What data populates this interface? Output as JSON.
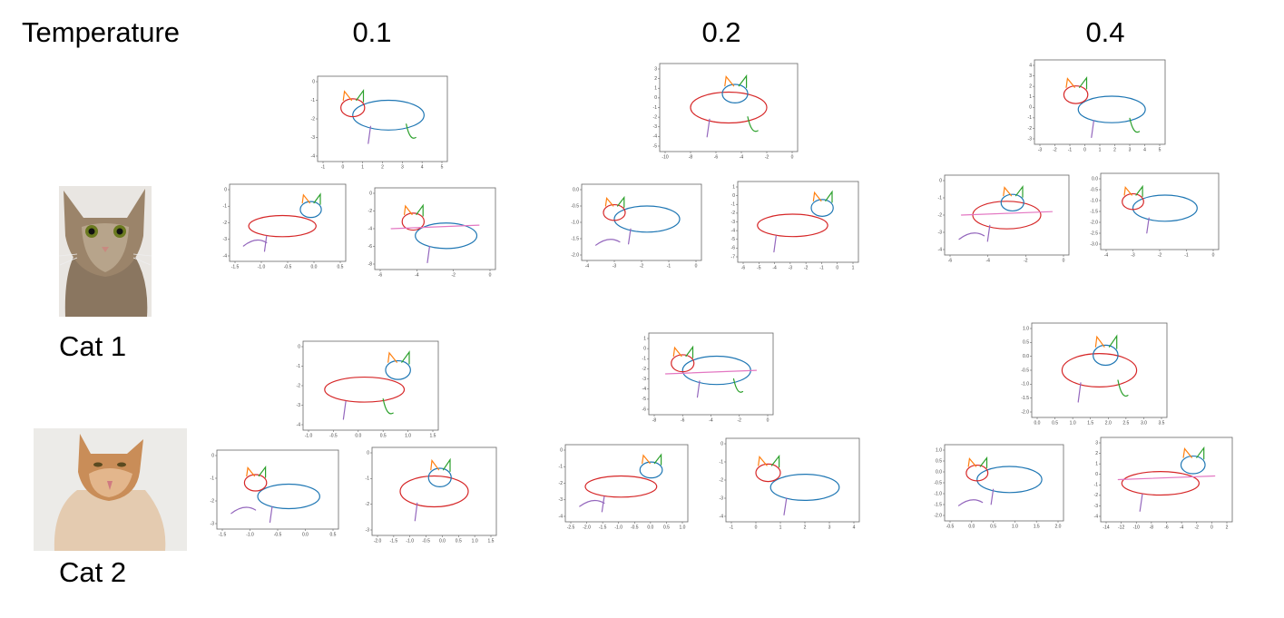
{
  "header": {
    "label": "Temperature",
    "columns": [
      "0.1",
      "0.2",
      "0.4"
    ]
  },
  "rows": [
    {
      "label": "Cat 1",
      "columns": [
        [
          {
            "xticks": [
              "-1",
              "0",
              "1",
              "2",
              "3",
              "4",
              "5"
            ],
            "yticks": [
              "0",
              "-1",
              "-2",
              "-3",
              "-4"
            ]
          },
          {
            "xticks": [
              "-1.5",
              "-1.0",
              "-0.5",
              "0.0",
              "0.5"
            ],
            "yticks": [
              "0",
              "-1",
              "-2",
              "-3",
              "-4"
            ]
          },
          {
            "xticks": [
              "-6",
              "-4",
              "-2",
              "0"
            ],
            "yticks": [
              "0",
              "-2",
              "-4",
              "-6",
              "-8"
            ]
          }
        ],
        [
          {
            "xticks": [
              "-10",
              "-8",
              "-6",
              "-4",
              "-2",
              "0"
            ],
            "yticks": [
              "3",
              "2",
              "1",
              "0",
              "-1",
              "-2",
              "-3",
              "-4",
              "-5"
            ]
          },
          {
            "xticks": [
              "-4",
              "-3",
              "-2",
              "-1",
              "0"
            ],
            "yticks": [
              "0.0",
              "-0.5",
              "-1.0",
              "-1.5",
              "-2.0"
            ]
          },
          {
            "xticks": [
              "-6",
              "-5",
              "-4",
              "-3",
              "-2",
              "-1",
              "0",
              "1"
            ],
            "yticks": [
              "1",
              "0",
              "-1",
              "-2",
              "-3",
              "-4",
              "-5",
              "-6",
              "-7"
            ]
          }
        ],
        [
          {
            "xticks": [
              "-3",
              "-2",
              "-1",
              "0",
              "1",
              "2",
              "3",
              "4",
              "5"
            ],
            "yticks": [
              "4",
              "3",
              "2",
              "1",
              "0",
              "-1",
              "-2",
              "-3"
            ]
          },
          {
            "xticks": [
              "-6",
              "-4",
              "-2",
              "0"
            ],
            "yticks": [
              "0",
              "-1",
              "-2",
              "-3",
              "-4"
            ]
          },
          {
            "xticks": [
              "-4",
              "-3",
              "-2",
              "-1",
              "0"
            ],
            "yticks": [
              "0.0",
              "-0.5",
              "-1.0",
              "-1.5",
              "-2.0",
              "-2.5",
              "-3.0"
            ]
          }
        ]
      ]
    },
    {
      "label": "Cat 2",
      "columns": [
        [
          {
            "xticks": [
              "-1.0",
              "-0.5",
              "0.0",
              "0.5",
              "1.0",
              "1.5"
            ],
            "yticks": [
              "0",
              "-1",
              "-2",
              "-3",
              "-4"
            ]
          },
          {
            "xticks": [
              "-1.5",
              "-1.0",
              "-0.5",
              "0.0",
              "0.5"
            ],
            "yticks": [
              "0",
              "-1",
              "-2",
              "-3"
            ]
          },
          {
            "xticks": [
              "-2.0",
              "-1.5",
              "-1.0",
              "-0.5",
              "0.0",
              "0.5",
              "1.0",
              "1.5"
            ],
            "yticks": [
              "0",
              "-1",
              "-2",
              "-3"
            ]
          }
        ],
        [
          {
            "xticks": [
              "-8",
              "-6",
              "-4",
              "-2",
              "0"
            ],
            "yticks": [
              "1",
              "0",
              "-1",
              "-2",
              "-3",
              "-4",
              "-5",
              "-6"
            ]
          },
          {
            "xticks": [
              "-2.5",
              "-2.0",
              "-1.5",
              "-1.0",
              "-0.5",
              "0.0",
              "0.5",
              "1.0"
            ],
            "yticks": [
              "0",
              "-1",
              "-2",
              "-3",
              "-4"
            ]
          },
          {
            "xticks": [
              "-1",
              "0",
              "1",
              "2",
              "3",
              "4"
            ],
            "yticks": [
              "0",
              "-1",
              "-2",
              "-3",
              "-4"
            ]
          }
        ],
        [
          {
            "xticks": [
              "0.0",
              "0.5",
              "1.0",
              "1.5",
              "2.0",
              "2.5",
              "3.0",
              "3.5"
            ],
            "yticks": [
              "1.0",
              "0.5",
              "0.0",
              "-0.5",
              "-1.0",
              "-1.5",
              "-2.0"
            ]
          },
          {
            "xticks": [
              "-0.5",
              "0.0",
              "0.5",
              "1.0",
              "1.5",
              "2.0"
            ],
            "yticks": [
              "1.0",
              "0.5",
              "0.0",
              "-0.5",
              "-1.0",
              "-1.5",
              "-2.0"
            ]
          },
          {
            "xticks": [
              "-14",
              "-12",
              "-10",
              "-8",
              "-6",
              "-4",
              "-2",
              "0",
              "2"
            ],
            "yticks": [
              "3",
              "2",
              "1",
              "0",
              "-1",
              "-2",
              "-3",
              "-4"
            ]
          }
        ]
      ]
    }
  ]
}
